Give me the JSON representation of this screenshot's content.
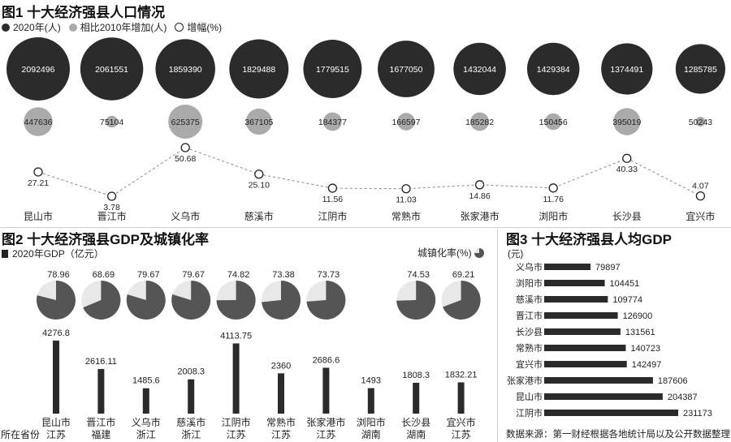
{
  "colors": {
    "dark": "#2b2b2b",
    "gray": "#aaaaaa",
    "pie_fill": "#555555",
    "pie_rest": "#e8e8e8",
    "line": "#888888"
  },
  "chart_data": [
    {
      "id": "fig1",
      "type": "scatter",
      "title": "图1 十大经济强县人口情况",
      "legend": [
        "2020年(人)",
        "相比2010年增加(人)",
        "增幅(%)"
      ],
      "categories": [
        "昆山市",
        "晋江市",
        "义乌市",
        "慈溪市",
        "江阴市",
        "常熟市",
        "张家港市",
        "浏阳市",
        "长沙县",
        "宜兴市"
      ],
      "series": [
        {
          "name": "2020年(人)",
          "values": [
            2092496,
            2061551,
            1859390,
            1829488,
            1779515,
            1677050,
            1432044,
            1429384,
            1374491,
            1285785
          ]
        },
        {
          "name": "相比2010年增加(人)",
          "values": [
            447636,
            75104,
            625375,
            367105,
            184377,
            166597,
            185282,
            150456,
            395019,
            50243
          ]
        },
        {
          "name": "增幅(%)",
          "values": [
            27.21,
            3.78,
            50.68,
            25.1,
            11.56,
            11.03,
            14.86,
            11.76,
            40.33,
            4.07
          ]
        }
      ],
      "value_labels": {
        "pop": [
          "2092496",
          "2061551",
          "1859390",
          "1829488",
          "1779515",
          "1677050",
          "1432044",
          "1429384",
          "1374491",
          "1285785"
        ],
        "inc": [
          "447636",
          "75104",
          "625375",
          "367105",
          "184377",
          "166597",
          "185282",
          "150456",
          "395019",
          "50243"
        ],
        "rate": [
          "27.21",
          "3.78",
          "50.68",
          "25.10",
          "11.56",
          "11.03",
          "14.86",
          "11.76",
          "40.33",
          "4.07"
        ]
      }
    },
    {
      "id": "fig2",
      "type": "bar",
      "title": "图2 十大经济强县GDP及城镇化率",
      "legend": [
        "2020年GDP（亿元）",
        "城镇化率(%)"
      ],
      "categories": [
        "昆山市",
        "晋江市",
        "义乌市",
        "慈溪市",
        "江阴市",
        "常熟市",
        "张家港市",
        "浏阳市",
        "长沙县",
        "宜兴市"
      ],
      "provinces": [
        "江苏",
        "福建",
        "浙江",
        "浙江",
        "江苏",
        "江苏",
        "江苏",
        "湖南",
        "湖南",
        "江苏"
      ],
      "province_label": "所在省份",
      "series": [
        {
          "name": "2020年GDP（亿元）",
          "values": [
            4276.8,
            2616.11,
            1485.6,
            2008.3,
            4113.75,
            2360,
            2686.6,
            1493,
            1808.3,
            1832.21
          ]
        },
        {
          "name": "城镇化率(%)",
          "values": [
            78.96,
            68.69,
            79.67,
            79.67,
            74.82,
            73.38,
            73.73,
            null,
            74.53,
            69.21
          ]
        }
      ],
      "gdp_labels": [
        "4276.8",
        "2616.11",
        "1485.6",
        "2008.3",
        "4113.75",
        "2360",
        "2686.6",
        "1493",
        "1808.3",
        "1832.21"
      ],
      "urban_labels": [
        "78.96",
        "68.69",
        "79.67",
        "79.67",
        "74.82",
        "73.38",
        "73.73",
        "",
        "74.53",
        "69.21"
      ]
    },
    {
      "id": "fig3",
      "type": "bar",
      "orientation": "horizontal",
      "title": "图3 十大经济强县人均GDP",
      "unit": "(元)",
      "categories": [
        "义乌市",
        "浏阳市",
        "慈溪市",
        "晋江市",
        "长沙县",
        "常熟市",
        "宜兴市",
        "张家港市",
        "昆山市",
        "江阴市"
      ],
      "values": [
        79897,
        104451,
        109774,
        126900,
        131561,
        140723,
        142497,
        187606,
        204387,
        231173
      ],
      "value_labels": [
        "79897",
        "104451",
        "109774",
        "126900",
        "131561",
        "140723",
        "142497",
        "187606",
        "204387",
        "231173"
      ]
    }
  ],
  "source": "数据来源：第一财经根据各地统计局以及公开数据整理"
}
